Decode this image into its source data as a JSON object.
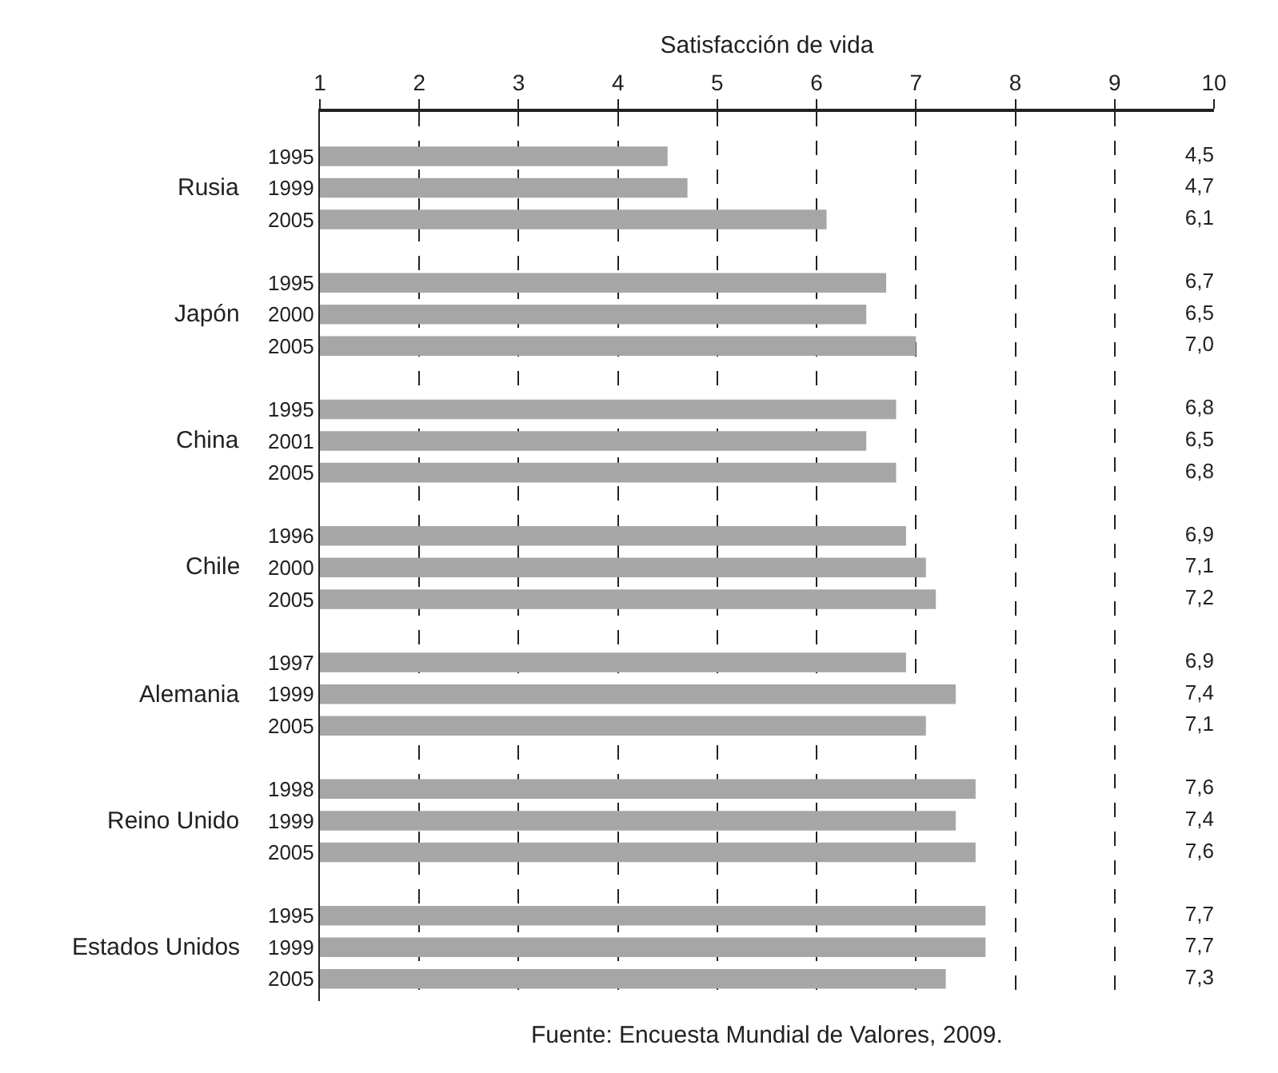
{
  "chart_data": {
    "type": "bar",
    "orientation": "horizontal",
    "xlabel": "Satisfacción de vida",
    "categories": [
      "1995",
      "1999",
      "2005",
      "1995",
      "2000",
      "2005",
      "1995",
      "2001",
      "2005",
      "1996",
      "2000",
      "2005",
      "1997",
      "1999",
      "2005",
      "1998",
      "1999",
      "2005",
      "1995",
      "1999",
      "2005"
    ],
    "values": [
      4.5,
      4.7,
      6.1,
      6.7,
      6.5,
      7.0,
      6.8,
      6.5,
      6.8,
      6.9,
      7.1,
      7.2,
      6.9,
      7.4,
      7.1,
      7.6,
      7.4,
      7.6,
      7.7,
      7.7,
      7.3
    ],
    "value_labels": [
      "4,5",
      "4,7",
      "6,1",
      "6,7",
      "6,5",
      "7,0",
      "6,8",
      "6,5",
      "6,8",
      "6,9",
      "7,1",
      "7,2",
      "6,9",
      "7,4",
      "7,1",
      "7,6",
      "7,4",
      "7,6",
      "7,7",
      "7,7",
      "7,3"
    ],
    "color": "#a6a6a6",
    "xlim": [
      1,
      10
    ],
    "xticks": [
      1,
      2,
      3,
      4,
      5,
      6,
      7,
      8,
      9,
      10
    ],
    "grid": "x",
    "line_style": "dashed",
    "legend": false,
    "annotations": [
      "Rusia",
      "Japón",
      "China",
      "Chile",
      "Alemania",
      "Reino Unido",
      "Estados Unidos",
      "Fuente: Encuesta Mundial de Valores, 2009."
    ]
  }
}
